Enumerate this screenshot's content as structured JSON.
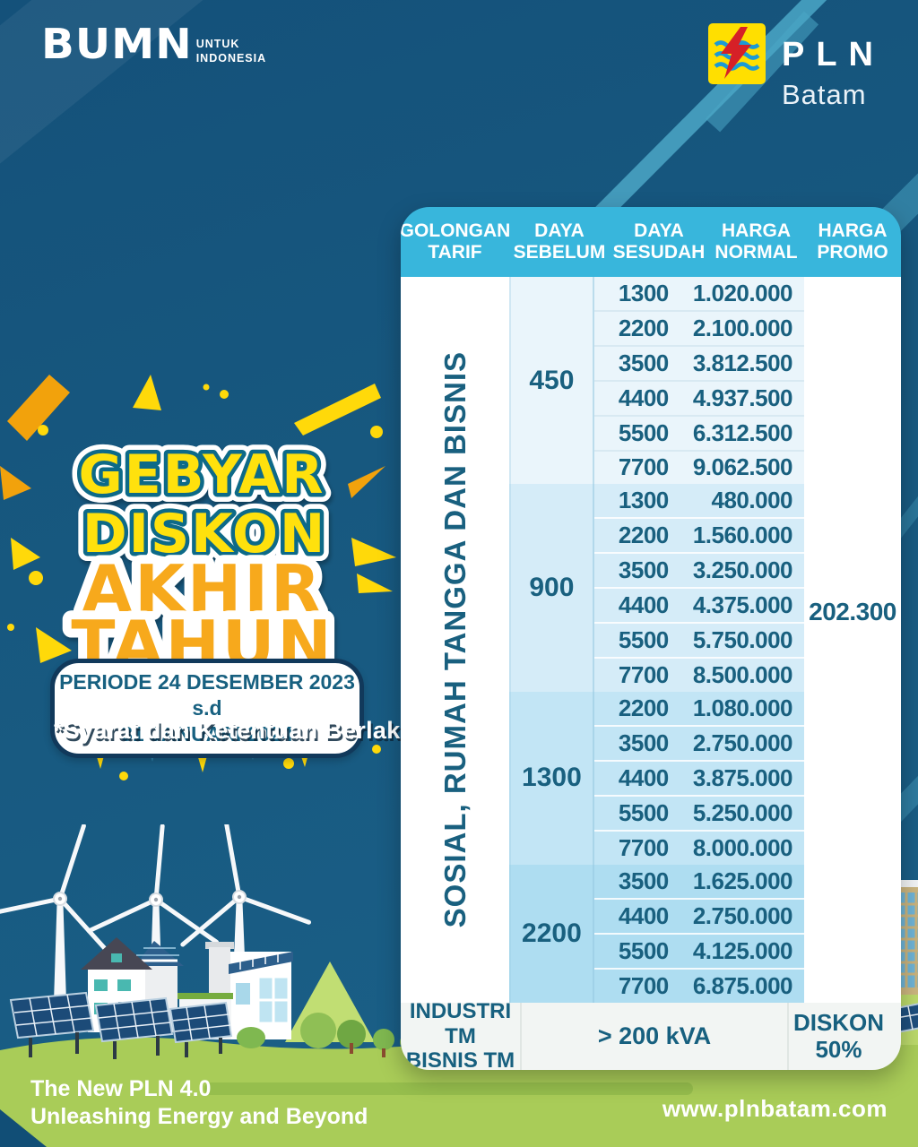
{
  "brand": {
    "bumn_text": "BUMN",
    "bumn_tagline": "UNTUK\nINDONESIA",
    "pln_text": "PLN",
    "pln_region": "Batam"
  },
  "hero": {
    "title_line1": "GEBYAR",
    "title_line2": "DISKON",
    "title_line3": "AKHIR",
    "title_line4": "TAHUN",
    "period": "PERIODE 24 DESEMBER 2023 s.d\n31 JANUARI 2024",
    "terms": "*Syarat dan Ketentuan Berlaku"
  },
  "table": {
    "headers": [
      "GOLONGAN TARIF",
      "DAYA SEBELUM",
      "DAYA SESUDAH",
      "HARGA NORMAL",
      "HARGA PROMO"
    ],
    "category_label": "SOSIAL, RUMAH TANGGA DAN BISNIS",
    "promo_price": "202.300",
    "sections": [
      {
        "daya_sebelum": "450",
        "rows": [
          [
            "1300",
            "1.020.000"
          ],
          [
            "2200",
            "2.100.000"
          ],
          [
            "3500",
            "3.812.500"
          ],
          [
            "4400",
            "4.937.500"
          ],
          [
            "5500",
            "6.312.500"
          ],
          [
            "7700",
            "9.062.500"
          ]
        ]
      },
      {
        "daya_sebelum": "900",
        "rows": [
          [
            "1300",
            "480.000"
          ],
          [
            "2200",
            "1.560.000"
          ],
          [
            "3500",
            "3.250.000"
          ],
          [
            "4400",
            "4.375.000"
          ],
          [
            "5500",
            "5.750.000"
          ],
          [
            "7700",
            "8.500.000"
          ]
        ]
      },
      {
        "daya_sebelum": "1300",
        "rows": [
          [
            "2200",
            "1.080.000"
          ],
          [
            "3500",
            "2.750.000"
          ],
          [
            "4400",
            "3.875.000"
          ],
          [
            "5500",
            "5.250.000"
          ],
          [
            "7700",
            "8.000.000"
          ]
        ]
      },
      {
        "daya_sebelum": "2200",
        "rows": [
          [
            "3500",
            "1.625.000"
          ],
          [
            "4400",
            "2.750.000"
          ],
          [
            "5500",
            "4.125.000"
          ],
          [
            "7700",
            "6.875.000"
          ]
        ]
      }
    ],
    "footer_row": {
      "golongan": "INDUSTRI TM\nBISNIS TM",
      "kva": "> 200 kVA",
      "diskon": "DISKON\n50%"
    }
  },
  "footer": {
    "tagline": "The New PLN 4.0\nUnleashing Energy and Beyond",
    "website": "www.plnbatam.com"
  },
  "colors": {
    "background_blue": "#17587F",
    "header_cyan": "#38B6DC",
    "table_text_teal": "#19607F",
    "title_yellow": "#FFE10A",
    "title_orange": "#F7A91C",
    "footer_green": "#AFCF5C",
    "pln_yellow": "#FFDF00",
    "bolt_red": "#D62027",
    "wave_blue": "#1B9AD6",
    "navy": "#11395B"
  }
}
